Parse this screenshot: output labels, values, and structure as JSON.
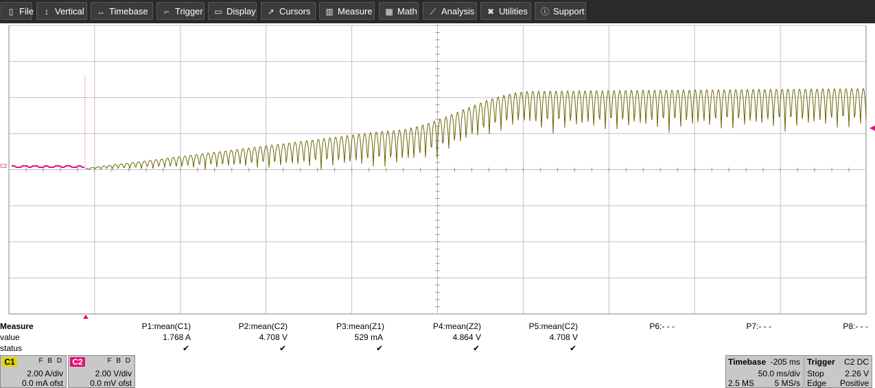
{
  "menu": [
    {
      "label": "File",
      "icon": "file-icon"
    },
    {
      "label": "Vertical",
      "icon": "vertical-arrows-icon"
    },
    {
      "label": "Timebase",
      "icon": "horizontal-arrows-icon"
    },
    {
      "label": "Trigger",
      "icon": "trigger-icon"
    },
    {
      "label": "Display",
      "icon": "display-icon"
    },
    {
      "label": "Cursors",
      "icon": "cursor-icon"
    },
    {
      "label": "Measure",
      "icon": "measure-icon"
    },
    {
      "label": "Math",
      "icon": "calculator-icon"
    },
    {
      "label": "Analysis",
      "icon": "analysis-chart-icon"
    },
    {
      "label": "Utilities",
      "icon": "tools-icon"
    },
    {
      "label": "Support",
      "icon": "info-icon"
    }
  ],
  "colors": {
    "c1": "#e0d400",
    "c1_trace": "#6b6400",
    "c2": "#e0107a",
    "grid": "#c0c0c0"
  },
  "c2_marker": "C2",
  "measure": {
    "row_labels": [
      "Measure",
      "value",
      "status"
    ],
    "params": [
      {
        "name": "P1:mean(C1)",
        "value": "1.768 A",
        "status": "✔"
      },
      {
        "name": "P2:mean(C2)",
        "value": "4.708 V",
        "status": "✔"
      },
      {
        "name": "P3:mean(Z1)",
        "value": "529 mA",
        "status": "✔"
      },
      {
        "name": "P4:mean(Z2)",
        "value": "4.864 V",
        "status": "✔"
      },
      {
        "name": "P5:mean(C2)",
        "value": "4.708 V",
        "status": "✔"
      },
      {
        "name": "P6:- - -",
        "value": "",
        "status": ""
      },
      {
        "name": "P7:- - -",
        "value": "",
        "status": ""
      },
      {
        "name": "P8:- - -",
        "value": "",
        "status": ""
      }
    ]
  },
  "channels": [
    {
      "tag": "C1",
      "flags": "F B D",
      "scale": "2.00 A/div",
      "offset": "0.0 mA ofst"
    },
    {
      "tag": "C2",
      "flags": "F B D",
      "scale": "2.00 V/div",
      "offset": "0.0 mV ofst"
    }
  ],
  "timebase": {
    "title": "Timebase",
    "delay": "-205 ms",
    "scale": "50.0 ms/div",
    "samples": "2.5 MS",
    "rate": "5 MS/s"
  },
  "trigger": {
    "title": "Trigger",
    "source": "C2 DC",
    "state": "Stop",
    "level": "2.26 V",
    "type": "Edge",
    "slope": "Positive"
  }
}
